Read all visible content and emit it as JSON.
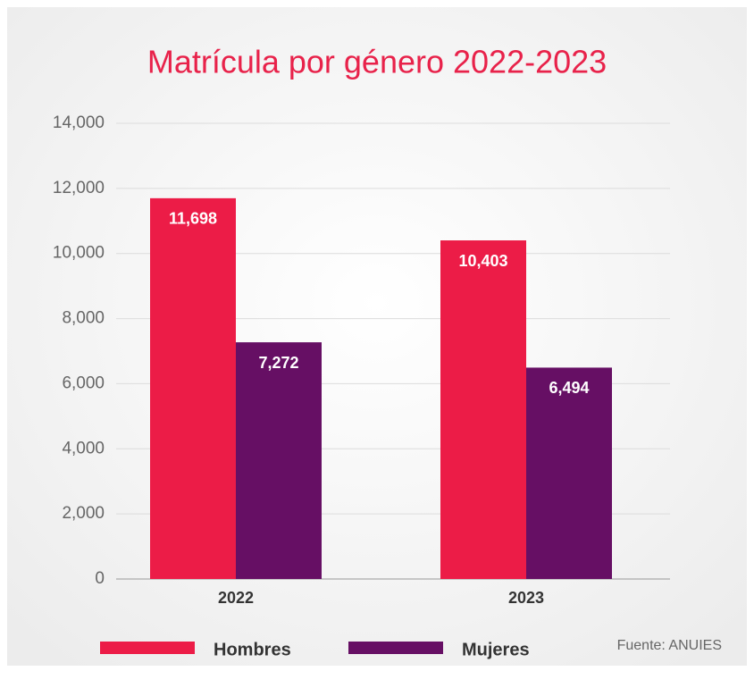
{
  "chart_data": {
    "type": "bar",
    "title": "Matrícula por género 2022-2023",
    "categories": [
      "2022",
      "2023"
    ],
    "series": [
      {
        "name": "Hombres",
        "color": "#ec1c47",
        "values": [
          11698,
          10403
        ],
        "value_labels": [
          "11,698",
          "10,403"
        ]
      },
      {
        "name": "Mujeres",
        "color": "#660f64",
        "values": [
          7272,
          6494
        ],
        "value_labels": [
          "7,272",
          "6,494"
        ]
      }
    ],
    "ylim": [
      0,
      14000
    ],
    "yticks": [
      0,
      {
        "value": 2000,
        "label": "2,000"
      },
      {
        "value": 4000,
        "label": "4,000"
      },
      {
        "value": 6000,
        "label": "6,000"
      },
      {
        "value": 8000,
        "label": "8,000"
      },
      {
        "value": 10000,
        "label": "10,000"
      },
      {
        "value": 12000,
        "label": "12,000"
      },
      {
        "value": 14000,
        "label": "14,000"
      }
    ],
    "grid": true,
    "legend": "bottom",
    "source": "Fuente: ANUIES"
  }
}
